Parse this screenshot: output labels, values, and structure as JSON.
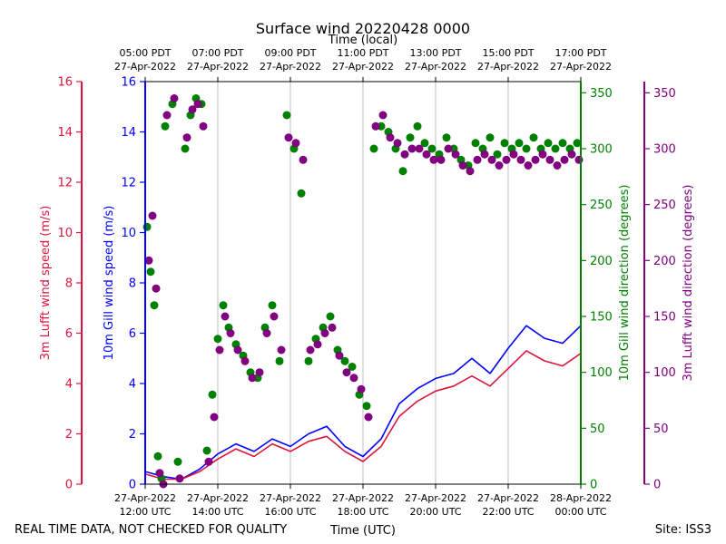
{
  "chart_data": {
    "type": "line",
    "title": "Surface wind 20220428 0000",
    "top_axis_title": "Time (local)",
    "xlabel": "Time (UTC)",
    "footer_left": "REAL TIME DATA, NOT CHECKED FOR QUALITY",
    "footer_right": "Site: ISS3",
    "x_range_hours_utc": [
      12.0,
      24.0
    ],
    "bottom_ticks": [
      {
        "hour": 12,
        "line1": "27-Apr-2022",
        "line2": "12:00 UTC"
      },
      {
        "hour": 14,
        "line1": "27-Apr-2022",
        "line2": "14:00 UTC"
      },
      {
        "hour": 16,
        "line1": "27-Apr-2022",
        "line2": "16:00 UTC"
      },
      {
        "hour": 18,
        "line1": "27-Apr-2022",
        "line2": "18:00 UTC"
      },
      {
        "hour": 20,
        "line1": "27-Apr-2022",
        "line2": "20:00 UTC"
      },
      {
        "hour": 22,
        "line1": "27-Apr-2022",
        "line2": "22:00 UTC"
      },
      {
        "hour": 24,
        "line1": "28-Apr-2022",
        "line2": "00:00 UTC"
      }
    ],
    "top_ticks": [
      {
        "hour": 12,
        "line1": "05:00 PDT",
        "line2": "27-Apr-2022"
      },
      {
        "hour": 14,
        "line1": "07:00 PDT",
        "line2": "27-Apr-2022"
      },
      {
        "hour": 16,
        "line1": "09:00 PDT",
        "line2": "27-Apr-2022"
      },
      {
        "hour": 18,
        "line1": "11:00 PDT",
        "line2": "27-Apr-2022"
      },
      {
        "hour": 20,
        "line1": "13:00 PDT",
        "line2": "27-Apr-2022"
      },
      {
        "hour": 22,
        "line1": "15:00 PDT",
        "line2": "27-Apr-2022"
      },
      {
        "hour": 24,
        "line1": "17:00 PDT",
        "line2": "27-Apr-2022"
      }
    ],
    "axes": {
      "lufft_speed": {
        "label": "3m Lufft wind speed (m/s)",
        "color": "#dc143c",
        "range": [
          0,
          16
        ],
        "ticks": [
          0,
          2,
          4,
          6,
          8,
          10,
          12,
          14,
          16
        ]
      },
      "gill_speed": {
        "label": "10m Gill wind speed (m/s)",
        "color": "#0000ff",
        "range": [
          0,
          16
        ],
        "ticks": [
          0,
          2,
          4,
          6,
          8,
          10,
          12,
          14,
          16
        ]
      },
      "gill_direction": {
        "label": "10m Gill wind direction (degrees)",
        "color": "#008000",
        "range": [
          0,
          360
        ],
        "ticks": [
          0,
          50,
          100,
          150,
          200,
          250,
          300,
          350
        ]
      },
      "lufft_direction": {
        "label": "3m Lufft wind direction (degrees)",
        "color": "#800080",
        "range": [
          0,
          360
        ],
        "ticks": [
          0,
          50,
          100,
          150,
          200,
          250,
          300,
          350
        ]
      }
    },
    "series": [
      {
        "name": "10m Gill wind speed",
        "kind": "line",
        "color": "#0000ff",
        "axis": "gill_speed",
        "x": [
          12.0,
          12.5,
          13.0,
          13.5,
          14.0,
          14.5,
          15.0,
          15.5,
          16.0,
          16.5,
          17.0,
          17.5,
          18.0,
          18.5,
          19.0,
          19.5,
          20.0,
          20.5,
          21.0,
          21.5,
          22.0,
          22.5,
          23.0,
          23.5,
          24.0
        ],
        "y": [
          0.5,
          0.3,
          0.2,
          0.6,
          1.2,
          1.6,
          1.3,
          1.8,
          1.5,
          2.0,
          2.3,
          1.5,
          1.1,
          1.8,
          3.2,
          3.8,
          4.2,
          4.4,
          5.0,
          4.4,
          5.4,
          6.3,
          5.8,
          5.6,
          6.3
        ]
      },
      {
        "name": "3m Lufft wind speed",
        "kind": "line",
        "color": "#dc143c",
        "axis": "lufft_speed",
        "x": [
          12.0,
          12.5,
          13.0,
          13.5,
          14.0,
          14.5,
          15.0,
          15.5,
          16.0,
          16.5,
          17.0,
          17.5,
          18.0,
          18.5,
          19.0,
          19.5,
          20.0,
          20.5,
          21.0,
          21.5,
          22.0,
          22.5,
          23.0,
          23.5,
          24.0
        ],
        "y": [
          0.4,
          0.2,
          0.2,
          0.5,
          1.0,
          1.4,
          1.1,
          1.6,
          1.3,
          1.7,
          1.9,
          1.3,
          0.9,
          1.5,
          2.7,
          3.3,
          3.7,
          3.9,
          4.3,
          3.9,
          4.6,
          5.3,
          4.9,
          4.7,
          5.2
        ]
      },
      {
        "name": "10m Gill wind direction",
        "kind": "scatter",
        "color": "#008000",
        "axis": "gill_direction",
        "x": [
          12.05,
          12.15,
          12.25,
          12.35,
          12.45,
          12.55,
          12.75,
          12.9,
          13.1,
          13.25,
          13.4,
          13.55,
          13.7,
          13.85,
          14.0,
          14.15,
          14.3,
          14.5,
          14.7,
          14.9,
          15.1,
          15.3,
          15.5,
          15.7,
          15.9,
          16.1,
          16.3,
          16.5,
          16.7,
          16.9,
          17.1,
          17.3,
          17.5,
          17.7,
          17.9,
          18.1,
          18.3,
          18.5,
          18.7,
          18.9,
          19.1,
          19.3,
          19.5,
          19.7,
          19.9,
          20.1,
          20.3,
          20.5,
          20.7,
          20.9,
          21.1,
          21.3,
          21.5,
          21.7,
          21.9,
          22.1,
          22.3,
          22.5,
          22.7,
          22.9,
          23.1,
          23.3,
          23.5,
          23.7,
          23.9
        ],
        "y": [
          230,
          190,
          160,
          25,
          5,
          320,
          340,
          20,
          300,
          330,
          345,
          340,
          30,
          80,
          130,
          160,
          140,
          125,
          115,
          100,
          95,
          140,
          160,
          110,
          330,
          300,
          260,
          110,
          130,
          140,
          150,
          120,
          110,
          105,
          80,
          70,
          300,
          320,
          315,
          300,
          280,
          310,
          320,
          305,
          300,
          295,
          310,
          300,
          290,
          285,
          305,
          300,
          310,
          295,
          305,
          300,
          305,
          300,
          310,
          300,
          305,
          300,
          305,
          300,
          305
        ]
      },
      {
        "name": "3m Lufft wind direction",
        "kind": "scatter",
        "color": "#800080",
        "axis": "lufft_direction",
        "x": [
          12.1,
          12.2,
          12.3,
          12.4,
          12.5,
          12.6,
          12.8,
          12.95,
          13.15,
          13.3,
          13.45,
          13.6,
          13.75,
          13.9,
          14.05,
          14.2,
          14.35,
          14.55,
          14.75,
          14.95,
          15.15,
          15.35,
          15.55,
          15.75,
          15.95,
          16.15,
          16.35,
          16.55,
          16.75,
          16.95,
          17.15,
          17.35,
          17.55,
          17.75,
          17.95,
          18.15,
          18.35,
          18.55,
          18.75,
          18.95,
          19.15,
          19.35,
          19.55,
          19.75,
          19.95,
          20.15,
          20.35,
          20.55,
          20.75,
          20.95,
          21.15,
          21.35,
          21.55,
          21.75,
          21.95,
          22.15,
          22.35,
          22.55,
          22.75,
          22.95,
          23.15,
          23.35,
          23.55,
          23.75,
          23.95
        ],
        "y": [
          200,
          240,
          175,
          10,
          0,
          330,
          345,
          5,
          310,
          335,
          340,
          320,
          20,
          60,
          120,
          150,
          135,
          120,
          110,
          95,
          100,
          135,
          150,
          120,
          310,
          305,
          290,
          120,
          125,
          135,
          140,
          115,
          100,
          95,
          85,
          60,
          320,
          330,
          310,
          305,
          295,
          300,
          300,
          295,
          290,
          290,
          300,
          295,
          285,
          280,
          290,
          295,
          290,
          285,
          290,
          295,
          290,
          285,
          290,
          295,
          290,
          285,
          290,
          295,
          290
        ]
      }
    ]
  }
}
